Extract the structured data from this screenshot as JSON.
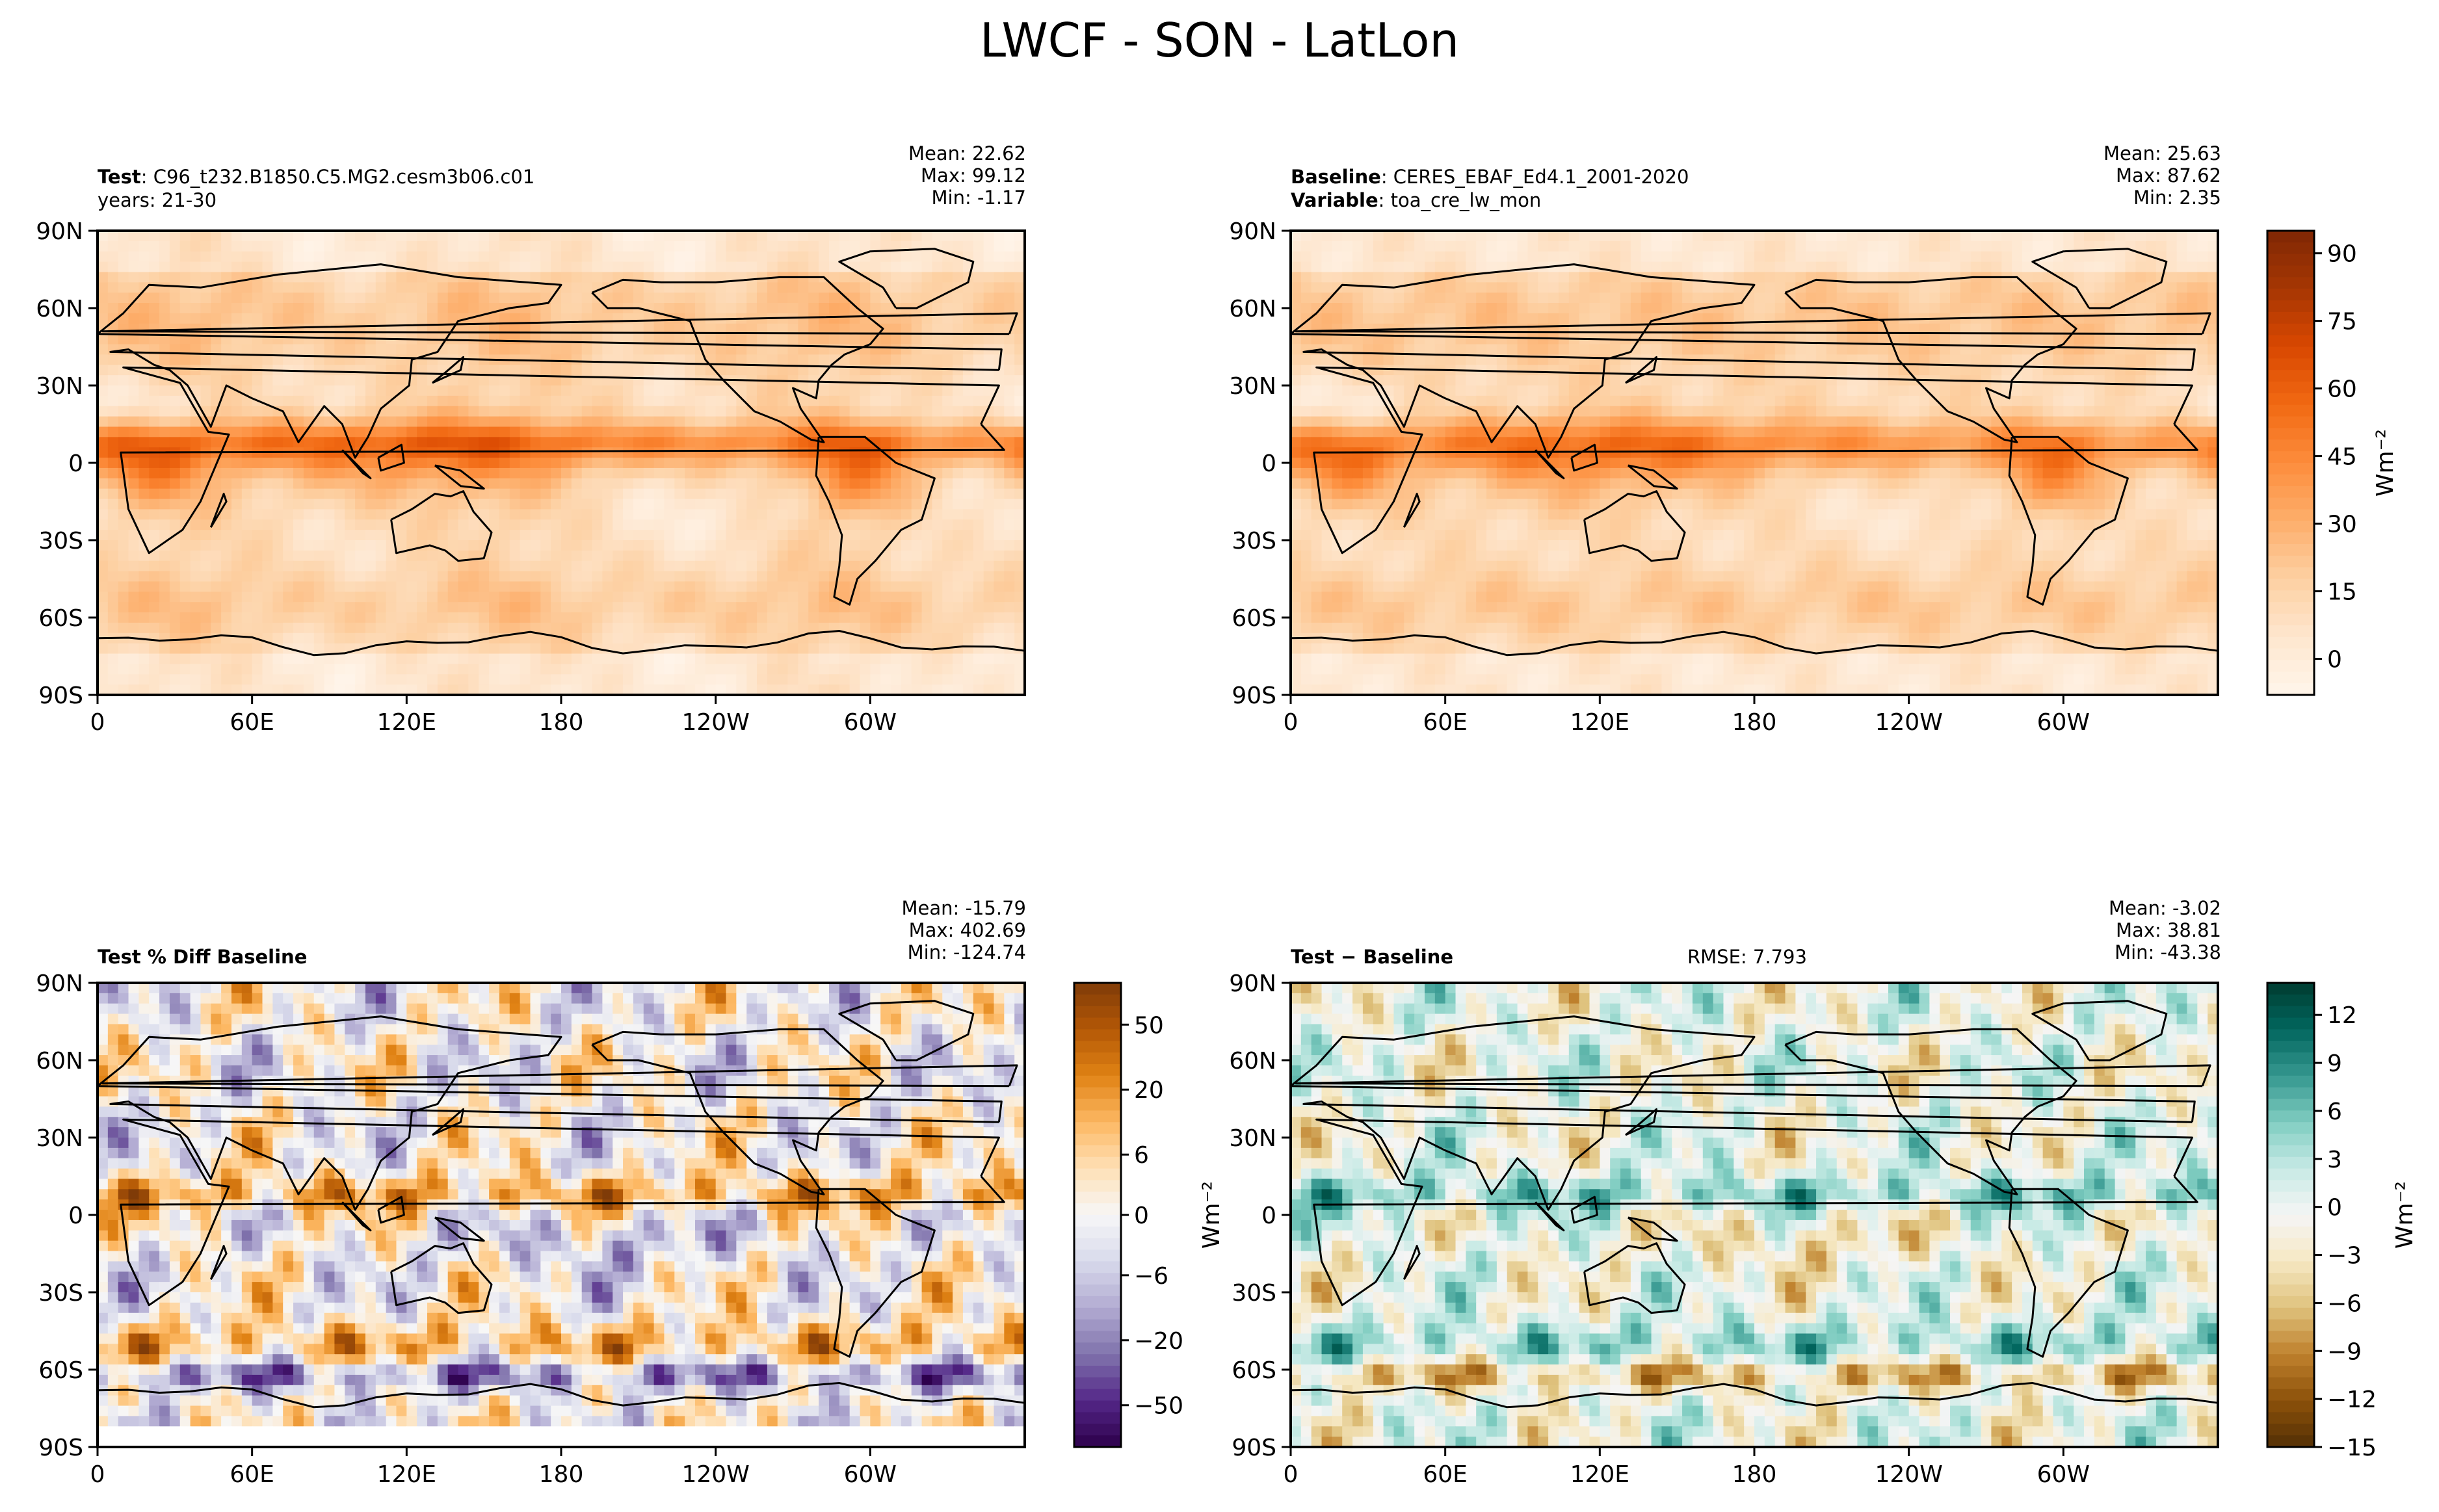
{
  "title": "LWCF - SON - LatLon",
  "colormaps": {
    "oranges": [
      "#fff5eb",
      "#fee6ce",
      "#fdd0a2",
      "#fdae6b",
      "#fd8d3c",
      "#f16913",
      "#d94801",
      "#a63603",
      "#7f2704"
    ],
    "diverging_pct": [
      "#2d004b",
      "#542788",
      "#8073ac",
      "#b2abd2",
      "#d8daeb",
      "#f7f7f7",
      "#fee0b6",
      "#fdb863",
      "#e08214",
      "#b35806",
      "#7f3b08"
    ],
    "diverging_abs": [
      "#543005",
      "#8c510a",
      "#bf812d",
      "#dfc27d",
      "#f6e8c3",
      "#f5f5f5",
      "#c7eae5",
      "#80cdc1",
      "#35978f",
      "#01665e",
      "#003c30"
    ],
    "land_line": "#000000"
  },
  "panels": {
    "test": {
      "label_bold": "Test",
      "label_text": ": C96_t232.B1850.C5.MG2.cesm3b06.c01",
      "label_line2": "years: 21-30",
      "stats": [
        "Mean: 22.62",
        "Max: 99.12",
        "Min: -1.17"
      ]
    },
    "baseline": {
      "label_bold": "Baseline",
      "label_text": ": CERES_EBAF_Ed4.1_2001-2020",
      "label2_bold": "Variable",
      "label2_text": ": toa_cre_lw_mon",
      "stats": [
        "Mean: 25.63",
        "Max: 87.62",
        "Min:  2.35"
      ]
    },
    "pctdiff": {
      "label_bold": "Test % Diff Baseline",
      "stats": [
        "Mean: -15.79",
        "Max: 402.69",
        "Min: -124.74"
      ]
    },
    "diff": {
      "label_bold": "Test − Baseline",
      "rmse": "RMSE: 7.793",
      "stats": [
        "Mean: -3.02",
        "Max: 38.81",
        "Min: -43.38"
      ]
    }
  },
  "chart_data": [
    {
      "type": "heatmap",
      "name": "Test",
      "x_ticks": [
        "0",
        "60E",
        "120E",
        "180",
        "120W",
        "60W"
      ],
      "y_ticks": [
        "90N",
        "60N",
        "30N",
        "0",
        "30S",
        "60S",
        "90S"
      ],
      "colormap": "oranges",
      "range": [
        -8,
        95
      ],
      "stats": {
        "mean": 22.62,
        "max": 99.12,
        "min": -1.17
      }
    },
    {
      "type": "heatmap",
      "name": "Baseline",
      "x_ticks": [
        "0",
        "60E",
        "120E",
        "180",
        "120W",
        "60W"
      ],
      "y_ticks": [
        "90N",
        "60N",
        "30N",
        "0",
        "30S",
        "60S",
        "90S"
      ],
      "colormap": "oranges",
      "range": [
        -8,
        95
      ],
      "stats": {
        "mean": 25.63,
        "max": 87.62,
        "min": 2.35
      },
      "colorbar": {
        "ticks": [
          90,
          75,
          60,
          45,
          30,
          15,
          0
        ],
        "label": "Wm⁻²"
      }
    },
    {
      "type": "heatmap",
      "name": "Test % Diff Baseline",
      "x_ticks": [
        "0",
        "60E",
        "120E",
        "180",
        "120W",
        "60W"
      ],
      "y_ticks": [
        "90N",
        "60N",
        "30N",
        "0",
        "30S",
        "60S",
        "90S"
      ],
      "colormap": "diverging_pct",
      "stats": {
        "mean": -15.79,
        "max": 402.69,
        "min": -124.74
      },
      "colorbar": {
        "ticks": [
          50,
          20,
          6,
          0,
          -6,
          -20,
          -50
        ],
        "label": "Wm⁻²"
      }
    },
    {
      "type": "heatmap",
      "name": "Test − Baseline",
      "x_ticks": [
        "0",
        "60E",
        "120E",
        "180",
        "120W",
        "60W"
      ],
      "y_ticks": [
        "90N",
        "60N",
        "30N",
        "0",
        "30S",
        "60S",
        "90S"
      ],
      "colormap": "diverging_abs",
      "range": [
        -15,
        14
      ],
      "rmse": 7.793,
      "stats": {
        "mean": -3.02,
        "max": 38.81,
        "min": -43.38
      },
      "colorbar": {
        "ticks": [
          12,
          9,
          6,
          3,
          0,
          -3,
          -6,
          -9,
          -12,
          -15
        ],
        "label": "Wm⁻²"
      }
    }
  ]
}
